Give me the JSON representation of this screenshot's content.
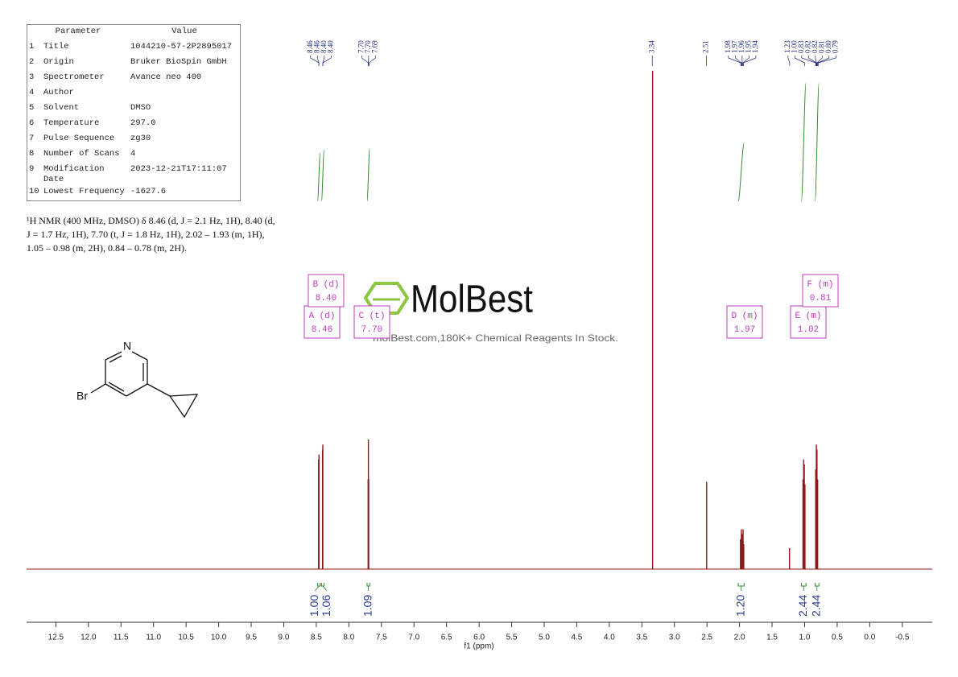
{
  "chart_data": {
    "type": "nmr",
    "xlabel": "f1 (ppm)",
    "xlim": [
      12.95,
      -0.96
    ],
    "ylim": [
      0,
      100
    ],
    "xticks": [
      12.5,
      {
        "value": 12,
        "label": "12.0"
      },
      11.5,
      {
        "value": 11,
        "label": "11.0"
      },
      10.5,
      {
        "value": 10,
        "label": "10.0"
      },
      9.5,
      {
        "value": 9,
        "label": "9.0"
      },
      8.5,
      {
        "value": 8,
        "label": "8.0"
      },
      7.5,
      {
        "value": 7,
        "label": "7.0"
      },
      6.5,
      {
        "value": 6,
        "label": "6.0"
      },
      5.5,
      {
        "value": 5,
        "label": "5.0"
      },
      4.5,
      {
        "value": 4,
        "label": "4.0"
      },
      3.5,
      {
        "value": 3,
        "label": "3.0"
      },
      2.5,
      {
        "value": 2,
        "label": "2.0"
      },
      1.5,
      {
        "value": 1,
        "label": "1.0"
      },
      0.5,
      {
        "value": 0,
        "label": "0.0"
      },
      -0.5
    ],
    "x": [
      8.465,
      8.459,
      8.404,
      8.4,
      7.704,
      7.7,
      7.695,
      3.335,
      2.505,
      1.985,
      1.972,
      1.958,
      1.945,
      1.935,
      1.232,
      1.025,
      1.015,
      1.005,
      0.995,
      0.83,
      0.82,
      0.81,
      0.8
    ],
    "values": [
      22,
      23,
      24,
      25,
      18,
      26,
      18,
      100,
      17.5,
      6,
      8,
      7,
      8,
      5,
      4.2,
      18,
      22,
      21,
      17,
      20,
      25,
      24,
      18
    ],
    "color": "#8b1a1a",
    "peak_labels": [
      8.46,
      8.46,
      {
        "value": 8.4,
        "label": "8.40"
      },
      {
        "value": 8.4,
        "label": "8.40"
      },
      {
        "value": 7.7,
        "label": "7.70"
      },
      {
        "value": 7.7,
        "label": "7.70"
      },
      7.69,
      3.34,
      2.51,
      1.98,
      1.97,
      1.96,
      1.95,
      1.94,
      1.23,
      {
        "value": 1,
        "label": "1.00"
      },
      0.83,
      0.82,
      0.82,
      0.81,
      {
        "value": 0.8,
        "label": "0.80"
      },
      0.79
    ],
    "integrals": [
      {
        "from": 8.48,
        "to": 8.44,
        "value": 1,
        "label": "1.00"
      },
      {
        "from": 8.42,
        "to": 8.38,
        "value": 1.06
      },
      {
        "from": 7.72,
        "to": 7.68,
        "value": 1.09
      },
      {
        "from": 2.02,
        "to": 1.93,
        "value": 1.2,
        "label": "1.20"
      },
      {
        "from": 1.05,
        "to": 0.98,
        "value": 2.44
      },
      {
        "from": 0.84,
        "to": 0.78,
        "value": 2.44
      }
    ],
    "multiplets": [
      {
        "name": "A (d)",
        "shift": 8.46
      },
      {
        "name": "B (d)",
        "shift": {
          "value": 8.4,
          "label": "8.40"
        }
      },
      {
        "name": "C (t)",
        "shift": {
          "value": 7.7,
          "label": "7.70"
        }
      },
      {
        "name": "D (m)",
        "shift": 1.97
      },
      {
        "name": "E (m)",
        "shift": 1.02
      },
      {
        "name": "F (m)",
        "shift": 0.81
      }
    ]
  },
  "table": {
    "header": [
      "Parameter",
      "Value"
    ],
    "rows": [
      [
        1,
        "Title",
        "1044210-57-2P2895017"
      ],
      [
        2,
        "Origin",
        "Bruker BioSpin GmbH"
      ],
      [
        3,
        "Spectrometer",
        "Avance neo 400"
      ],
      [
        4,
        "Author",
        ""
      ],
      [
        5,
        "Solvent",
        "DMSO"
      ],
      [
        6,
        "Temperature",
        "297.0"
      ],
      [
        7,
        "Pulse Sequence",
        "zg30"
      ],
      [
        8,
        "Number of Scans",
        4
      ],
      [
        9,
        "Modification Date",
        "2023-12-21T17:11:07"
      ],
      [
        10,
        "Lowest Frequency",
        -1627.6
      ]
    ]
  },
  "description": "¹H NMR (400 MHz, DMSO) δ 8.46 (d, J = 2.1 Hz, 1H), 8.40 (d, J = 1.7 Hz, 1H), 7.70 (t, J = 1.8 Hz, 1H), 2.02 – 1.93 (m, 1H), 1.05 – 0.98 (m, 2H), 0.84 – 0.78 (m, 2H).",
  "molecule": {
    "atoms": [
      "N",
      "Br"
    ]
  },
  "watermark": {
    "brand": "MolBest",
    "tagline": "molBest.com,180K+ Chemical Reagents In Stock."
  }
}
